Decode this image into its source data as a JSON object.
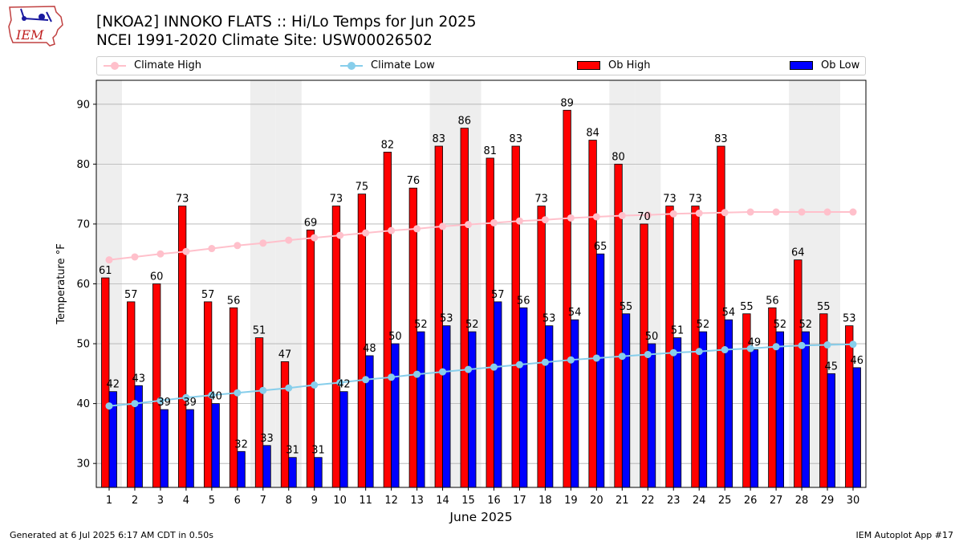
{
  "logo_text": "IEM",
  "title": "[NKOA2] INNOKO FLATS :: Hi/Lo Temps for Jun 2025",
  "subtitle": "NCEI 1991-2020 Climate Site: USW00026502",
  "footer_left": "Generated at 6 Jul 2025 6:17 AM CDT in 0.50s",
  "footer_right": "IEM Autoplot App #17",
  "legend": {
    "climate_high": "Climate High",
    "climate_low": "Climate Low",
    "ob_high": "Ob High",
    "ob_low": "Ob Low"
  },
  "colors": {
    "ob_high": "#ff0000",
    "ob_low": "#0000ff",
    "climate_high": "#ffc0cb",
    "climate_low": "#87ceeb",
    "weekend_band": "#eeeeee",
    "grid": "#b0b0b0"
  },
  "chart_data": {
    "type": "bar",
    "xlabel": "June 2025",
    "ylabel": "Temperature °F",
    "ylim": [
      26,
      94
    ],
    "yticks": [
      30,
      40,
      50,
      60,
      70,
      80,
      90
    ],
    "grid": "horizontal",
    "legend_position": "top",
    "categories": [
      1,
      2,
      3,
      4,
      5,
      6,
      7,
      8,
      9,
      10,
      11,
      12,
      13,
      14,
      15,
      16,
      17,
      18,
      19,
      20,
      21,
      22,
      23,
      24,
      25,
      26,
      27,
      28,
      29,
      30
    ],
    "weekend_days": [
      1,
      7,
      8,
      14,
      15,
      21,
      22,
      28,
      29
    ],
    "series": [
      {
        "name": "Ob High",
        "kind": "bar",
        "values": [
          61,
          57,
          60,
          73,
          57,
          56,
          51,
          47,
          69,
          73,
          75,
          82,
          76,
          83,
          86,
          81,
          83,
          73,
          89,
          84,
          80,
          70,
          73,
          73,
          83,
          55,
          56,
          64,
          55,
          53
        ]
      },
      {
        "name": "Ob Low",
        "kind": "bar",
        "values": [
          42,
          43,
          39,
          39,
          40,
          32,
          33,
          31,
          31,
          42,
          48,
          50,
          52,
          53,
          52,
          57,
          56,
          53,
          54,
          65,
          55,
          50,
          51,
          52,
          54,
          49,
          52,
          52,
          45,
          46
        ]
      },
      {
        "name": "Climate High",
        "kind": "line",
        "values": [
          64.0,
          64.5,
          65.0,
          65.4,
          65.9,
          66.4,
          66.8,
          67.3,
          67.7,
          68.1,
          68.5,
          68.9,
          69.2,
          69.6,
          69.9,
          70.2,
          70.5,
          70.7,
          71.0,
          71.2,
          71.4,
          71.5,
          71.7,
          71.8,
          71.9,
          72.0,
          72.0,
          72.0,
          72.0,
          72.0
        ]
      },
      {
        "name": "Climate Low",
        "kind": "line",
        "values": [
          39.6,
          40.0,
          40.5,
          41.0,
          41.4,
          41.8,
          42.2,
          42.6,
          43.1,
          43.5,
          44.0,
          44.4,
          44.9,
          45.3,
          45.7,
          46.1,
          46.5,
          46.9,
          47.3,
          47.6,
          47.9,
          48.2,
          48.5,
          48.7,
          49.0,
          49.2,
          49.5,
          49.7,
          49.8,
          49.9
        ]
      }
    ]
  }
}
